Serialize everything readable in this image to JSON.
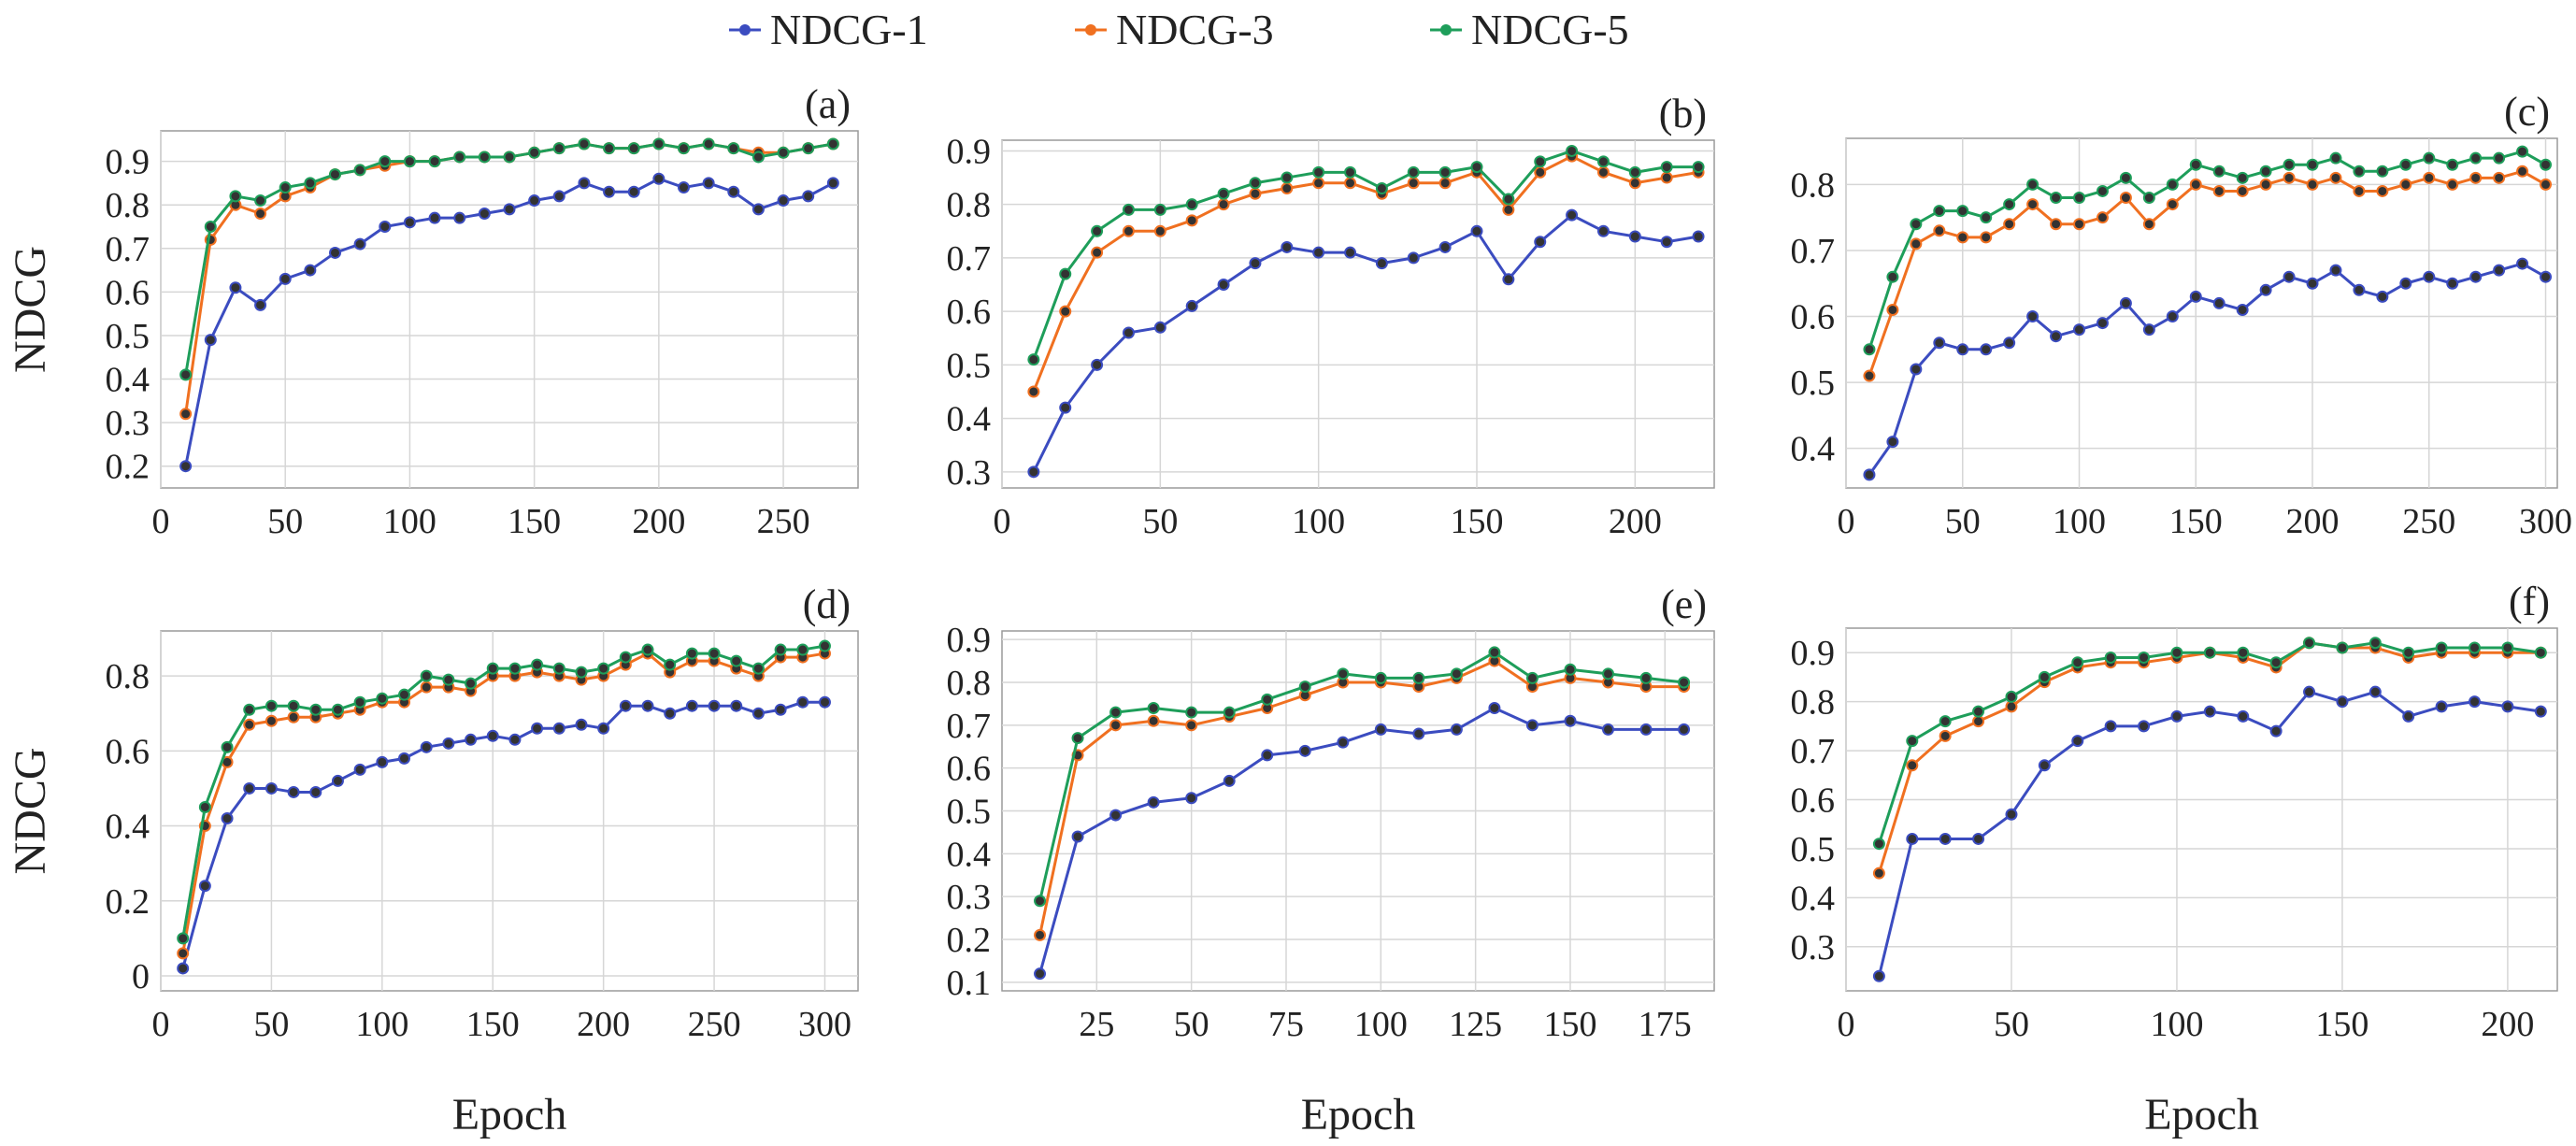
{
  "legend": [
    {
      "label": "NDCG-1",
      "color": "#3b4cc0"
    },
    {
      "label": "NDCG-3",
      "color": "#f07020"
    },
    {
      "label": "NDCG-5",
      "color": "#1e9e5a"
    }
  ],
  "chart_data": [
    {
      "type": "line",
      "panel": "(a)",
      "xlabel": "",
      "ylabel": "NDCG",
      "xlim": [
        0,
        280
      ],
      "ylim": [
        0.15,
        0.97
      ],
      "xticks": [
        0,
        50,
        100,
        150,
        200,
        250
      ],
      "yticks": [
        0.2,
        0.3,
        0.4,
        0.5,
        0.6,
        0.7,
        0.8,
        0.9
      ],
      "ytick_labels": [
        "0.2",
        "0.3",
        "0.4",
        "0.5",
        "0.6",
        "0.7",
        "0.8",
        "0.9"
      ],
      "grid": true,
      "x": [
        10,
        20,
        30,
        40,
        50,
        60,
        70,
        80,
        90,
        100,
        110,
        120,
        130,
        140,
        150,
        160,
        170,
        180,
        190,
        200,
        210,
        220,
        230,
        240,
        250,
        260,
        270
      ],
      "series": [
        {
          "name": "NDCG-1",
          "values": [
            0.2,
            0.49,
            0.61,
            0.57,
            0.63,
            0.65,
            0.69,
            0.71,
            0.75,
            0.76,
            0.77,
            0.77,
            0.78,
            0.79,
            0.81,
            0.82,
            0.85,
            0.83,
            0.83,
            0.86,
            0.84,
            0.85,
            0.83,
            0.79,
            0.81,
            0.82,
            0.85
          ]
        },
        {
          "name": "NDCG-3",
          "values": [
            0.32,
            0.72,
            0.8,
            0.78,
            0.82,
            0.84,
            0.87,
            0.88,
            0.89,
            0.9,
            0.9,
            0.91,
            0.91,
            0.91,
            0.92,
            0.93,
            0.94,
            0.93,
            0.93,
            0.94,
            0.93,
            0.94,
            0.93,
            0.92,
            0.92,
            0.93,
            0.94
          ]
        },
        {
          "name": "NDCG-5",
          "values": [
            0.41,
            0.75,
            0.82,
            0.81,
            0.84,
            0.85,
            0.87,
            0.88,
            0.9,
            0.9,
            0.9,
            0.91,
            0.91,
            0.91,
            0.92,
            0.93,
            0.94,
            0.93,
            0.93,
            0.94,
            0.93,
            0.94,
            0.93,
            0.91,
            0.92,
            0.93,
            0.94
          ]
        }
      ]
    },
    {
      "type": "line",
      "panel": "(b)",
      "xlabel": "",
      "ylabel": "",
      "xlim": [
        0,
        225
      ],
      "ylim": [
        0.27,
        0.92
      ],
      "xticks": [
        0,
        50,
        100,
        150,
        200
      ],
      "yticks": [
        0.3,
        0.4,
        0.5,
        0.6,
        0.7,
        0.8,
        0.9
      ],
      "ytick_labels": [
        "0.3",
        "0.4",
        "0.5",
        "0.6",
        "0.7",
        "0.8",
        "0.9"
      ],
      "grid": true,
      "x": [
        10,
        20,
        30,
        40,
        50,
        60,
        70,
        80,
        90,
        100,
        110,
        120,
        130,
        140,
        150,
        160,
        170,
        180,
        190,
        200,
        210,
        220
      ],
      "series": [
        {
          "name": "NDCG-1",
          "values": [
            0.3,
            0.42,
            0.5,
            0.56,
            0.57,
            0.61,
            0.65,
            0.69,
            0.72,
            0.71,
            0.71,
            0.69,
            0.7,
            0.72,
            0.75,
            0.66,
            0.73,
            0.78,
            0.75,
            0.74,
            0.73,
            0.74
          ]
        },
        {
          "name": "NDCG-3",
          "values": [
            0.45,
            0.6,
            0.71,
            0.75,
            0.75,
            0.77,
            0.8,
            0.82,
            0.83,
            0.84,
            0.84,
            0.82,
            0.84,
            0.84,
            0.86,
            0.79,
            0.86,
            0.89,
            0.86,
            0.84,
            0.85,
            0.86
          ]
        },
        {
          "name": "NDCG-5",
          "values": [
            0.51,
            0.67,
            0.75,
            0.79,
            0.79,
            0.8,
            0.82,
            0.84,
            0.85,
            0.86,
            0.86,
            0.83,
            0.86,
            0.86,
            0.87,
            0.81,
            0.88,
            0.9,
            0.88,
            0.86,
            0.87,
            0.87
          ]
        }
      ]
    },
    {
      "type": "line",
      "panel": "(c)",
      "xlabel": "",
      "ylabel": "",
      "xlim": [
        0,
        305
      ],
      "ylim": [
        0.34,
        0.87
      ],
      "xticks": [
        0,
        50,
        100,
        150,
        200,
        250,
        300
      ],
      "yticks": [
        0.4,
        0.5,
        0.6,
        0.7,
        0.8
      ],
      "ytick_labels": [
        "0.4",
        "0.5",
        "0.6",
        "0.7",
        "0.8"
      ],
      "grid": true,
      "x": [
        10,
        20,
        30,
        40,
        50,
        60,
        70,
        80,
        90,
        100,
        110,
        120,
        130,
        140,
        150,
        160,
        170,
        180,
        190,
        200,
        210,
        220,
        230,
        240,
        250,
        260,
        270,
        280,
        290,
        300
      ],
      "series": [
        {
          "name": "NDCG-1",
          "values": [
            0.36,
            0.41,
            0.52,
            0.56,
            0.55,
            0.55,
            0.56,
            0.6,
            0.57,
            0.58,
            0.59,
            0.62,
            0.58,
            0.6,
            0.63,
            0.62,
            0.61,
            0.64,
            0.66,
            0.65,
            0.67,
            0.64,
            0.63,
            0.65,
            0.66,
            0.65,
            0.66,
            0.67,
            0.68,
            0.66
          ]
        },
        {
          "name": "NDCG-3",
          "values": [
            0.51,
            0.61,
            0.71,
            0.73,
            0.72,
            0.72,
            0.74,
            0.77,
            0.74,
            0.74,
            0.75,
            0.78,
            0.74,
            0.77,
            0.8,
            0.79,
            0.79,
            0.8,
            0.81,
            0.8,
            0.81,
            0.79,
            0.79,
            0.8,
            0.81,
            0.8,
            0.81,
            0.81,
            0.82,
            0.8
          ]
        },
        {
          "name": "NDCG-5",
          "values": [
            0.55,
            0.66,
            0.74,
            0.76,
            0.76,
            0.75,
            0.77,
            0.8,
            0.78,
            0.78,
            0.79,
            0.81,
            0.78,
            0.8,
            0.83,
            0.82,
            0.81,
            0.82,
            0.83,
            0.83,
            0.84,
            0.82,
            0.82,
            0.83,
            0.84,
            0.83,
            0.84,
            0.84,
            0.85,
            0.83
          ]
        }
      ]
    },
    {
      "type": "line",
      "panel": "(d)",
      "xlabel": "Epoch",
      "ylabel": "NDCG",
      "xlim": [
        0,
        315
      ],
      "ylim": [
        -0.04,
        0.92
      ],
      "xticks": [
        0,
        50,
        100,
        150,
        200,
        250,
        300
      ],
      "yticks": [
        0,
        0.2,
        0.4,
        0.6,
        0.8
      ],
      "ytick_labels": [
        "0",
        "0.2",
        "0.4",
        "0.6",
        "0.8"
      ],
      "grid": true,
      "x": [
        10,
        20,
        30,
        40,
        50,
        60,
        70,
        80,
        90,
        100,
        110,
        120,
        130,
        140,
        150,
        160,
        170,
        180,
        190,
        200,
        210,
        220,
        230,
        240,
        250,
        260,
        270,
        280,
        290,
        300
      ],
      "series": [
        {
          "name": "NDCG-1",
          "values": [
            0.02,
            0.24,
            0.42,
            0.5,
            0.5,
            0.49,
            0.49,
            0.52,
            0.55,
            0.57,
            0.58,
            0.61,
            0.62,
            0.63,
            0.64,
            0.63,
            0.66,
            0.66,
            0.67,
            0.66,
            0.72,
            0.72,
            0.7,
            0.72,
            0.72,
            0.72,
            0.7,
            0.71,
            0.73,
            0.73
          ]
        },
        {
          "name": "NDCG-3",
          "values": [
            0.06,
            0.4,
            0.57,
            0.67,
            0.68,
            0.69,
            0.69,
            0.7,
            0.71,
            0.73,
            0.73,
            0.77,
            0.77,
            0.76,
            0.8,
            0.8,
            0.81,
            0.8,
            0.79,
            0.8,
            0.83,
            0.86,
            0.81,
            0.84,
            0.84,
            0.82,
            0.8,
            0.85,
            0.85,
            0.86
          ]
        },
        {
          "name": "NDCG-5",
          "values": [
            0.1,
            0.45,
            0.61,
            0.71,
            0.72,
            0.72,
            0.71,
            0.71,
            0.73,
            0.74,
            0.75,
            0.8,
            0.79,
            0.78,
            0.82,
            0.82,
            0.83,
            0.82,
            0.81,
            0.82,
            0.85,
            0.87,
            0.83,
            0.86,
            0.86,
            0.84,
            0.82,
            0.87,
            0.87,
            0.88
          ]
        }
      ]
    },
    {
      "type": "line",
      "panel": "(e)",
      "xlabel": "Epoch",
      "ylabel": "",
      "xlim": [
        0,
        188
      ],
      "ylim": [
        0.08,
        0.92
      ],
      "xticks": [
        25,
        50,
        75,
        100,
        125,
        150,
        175
      ],
      "yticks": [
        0.1,
        0.2,
        0.3,
        0.4,
        0.5,
        0.6,
        0.7,
        0.8,
        0.9
      ],
      "ytick_labels": [
        "0.1",
        "0.2",
        "0.3",
        "0.4",
        "0.5",
        "0.6",
        "0.7",
        "0.8",
        "0.9"
      ],
      "grid": true,
      "x": [
        10,
        20,
        30,
        40,
        50,
        60,
        70,
        80,
        90,
        100,
        110,
        120,
        130,
        140,
        150,
        160,
        170,
        180
      ],
      "series": [
        {
          "name": "NDCG-1",
          "values": [
            0.12,
            0.44,
            0.49,
            0.52,
            0.53,
            0.57,
            0.63,
            0.64,
            0.66,
            0.69,
            0.68,
            0.69,
            0.74,
            0.7,
            0.71,
            0.69,
            0.69,
            0.69
          ]
        },
        {
          "name": "NDCG-3",
          "values": [
            0.21,
            0.63,
            0.7,
            0.71,
            0.7,
            0.72,
            0.74,
            0.77,
            0.8,
            0.8,
            0.79,
            0.81,
            0.85,
            0.79,
            0.81,
            0.8,
            0.79,
            0.79
          ]
        },
        {
          "name": "NDCG-5",
          "values": [
            0.29,
            0.67,
            0.73,
            0.74,
            0.73,
            0.73,
            0.76,
            0.79,
            0.82,
            0.81,
            0.81,
            0.82,
            0.87,
            0.81,
            0.83,
            0.82,
            0.81,
            0.8
          ]
        }
      ]
    },
    {
      "type": "line",
      "panel": "(f)",
      "xlabel": "Epoch",
      "ylabel": "",
      "xlim": [
        0,
        215
      ],
      "ylim": [
        0.21,
        0.95
      ],
      "xticks": [
        0,
        50,
        100,
        150,
        200
      ],
      "yticks": [
        0.3,
        0.4,
        0.5,
        0.6,
        0.7,
        0.8,
        0.9
      ],
      "ytick_labels": [
        "0.3",
        "0.4",
        "0.5",
        "0.6",
        "0.7",
        "0.8",
        "0.9"
      ],
      "grid": true,
      "x": [
        10,
        20,
        30,
        40,
        50,
        60,
        70,
        80,
        90,
        100,
        110,
        120,
        130,
        140,
        150,
        160,
        170,
        180,
        190,
        200,
        210
      ],
      "series": [
        {
          "name": "NDCG-1",
          "values": [
            0.24,
            0.52,
            0.52,
            0.52,
            0.57,
            0.67,
            0.72,
            0.75,
            0.75,
            0.77,
            0.78,
            0.77,
            0.74,
            0.82,
            0.8,
            0.82,
            0.77,
            0.79,
            0.8,
            0.79,
            0.78
          ]
        },
        {
          "name": "NDCG-3",
          "values": [
            0.45,
            0.67,
            0.73,
            0.76,
            0.79,
            0.84,
            0.87,
            0.88,
            0.88,
            0.89,
            0.9,
            0.89,
            0.87,
            0.92,
            0.91,
            0.91,
            0.89,
            0.9,
            0.9,
            0.9,
            0.9
          ]
        },
        {
          "name": "NDCG-5",
          "values": [
            0.51,
            0.72,
            0.76,
            0.78,
            0.81,
            0.85,
            0.88,
            0.89,
            0.89,
            0.9,
            0.9,
            0.9,
            0.88,
            0.92,
            0.91,
            0.92,
            0.9,
            0.91,
            0.91,
            0.91,
            0.9
          ]
        }
      ]
    }
  ]
}
